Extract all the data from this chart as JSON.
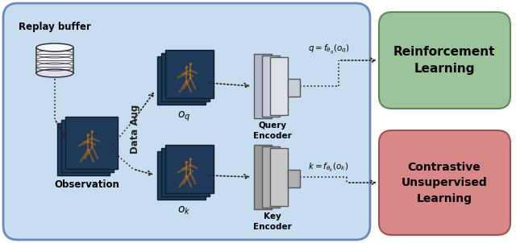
{
  "bg_main_color": "#c8ddf0",
  "bg_main_border": "#6a8ab8",
  "rl_box_color": "#9bc49b",
  "rl_box_border": "#5a8a5a",
  "cl_box_color": "#d98888",
  "cl_box_border": "#a05050",
  "obs_img_color": "#1e3a58",
  "obs_img_color2": "#243d5e",
  "stick_color": "#ff8800",
  "dotted_color": "#222222",
  "arrow_color": "#222222",
  "encoder_q_front": "#dde2ea",
  "encoder_q_mid": "#c8cdd8",
  "encoder_q_back": "#b0b8c8",
  "encoder_k_front": "#c8c8c8",
  "encoder_k_mid": "#b0b0b0",
  "encoder_k_back": "#989898",
  "fig_bg": "#ffffff",
  "title_rl": "Reinforcement\nLearning",
  "title_cl": "Contrastive\nUnsupervised\nLearning",
  "label_replay": "Replay buffer",
  "label_obs": "Observation",
  "label_oq": "$o_q$",
  "label_ok": "$o_k$",
  "label_q": "$q = f_{\\theta_q}(o_q)$",
  "label_k": "$k = f_{\\theta_k}(o_k)$",
  "label_query": "Query\nEncoder",
  "label_key": "Key\nEncoder",
  "label_dataaug": "Data Aug"
}
